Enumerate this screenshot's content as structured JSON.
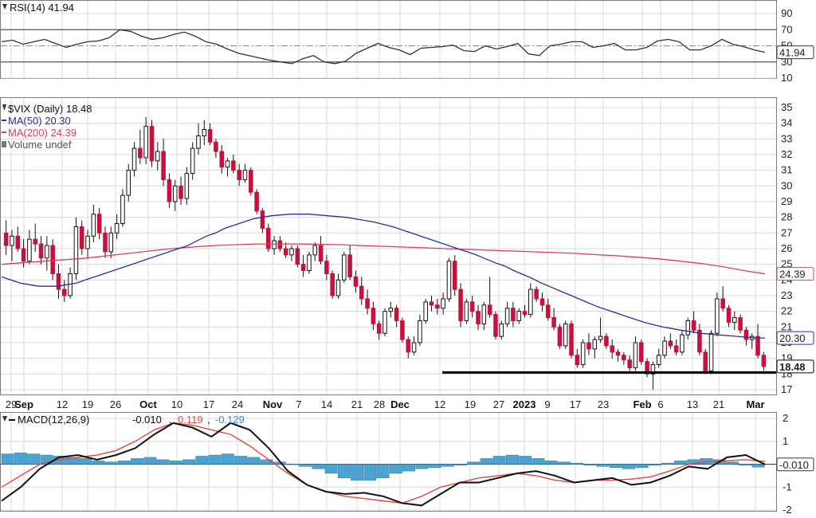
{
  "colors": {
    "up": "#ffffff",
    "down": "#c8103c",
    "wick": "#111111",
    "ma50": "#2a2f9a",
    "ma200": "#d8405a",
    "macd": "#111111",
    "signal": "#e24a3b",
    "hist": "#4aa3d0",
    "grid": "#d8d8d8",
    "support": "#000000"
  },
  "rsi_panel": {
    "legend": "RSI(14) 41.94",
    "value_label": "41.94",
    "ticks": [
      "90",
      "70",
      "50",
      "30",
      "10"
    ]
  },
  "price_panel": {
    "legend": {
      "title": "$VIX (Daily) 18.48",
      "ma50": "MA(50) 20.30",
      "ma200": "MA(200) 24.39",
      "volume": "Volume undef"
    },
    "last_label": "18.48",
    "ma50_label": "20.30",
    "ma200_label": "24.39",
    "ticks": [
      "35",
      "34",
      "33",
      "32",
      "31",
      "30",
      "29",
      "28",
      "27",
      "26",
      "25",
      "24",
      "23",
      "22",
      "21",
      "20",
      "19",
      "18",
      "17"
    ]
  },
  "x_axis": {
    "labels": [
      {
        "text": "29",
        "bold": false
      },
      {
        "text": "Sep",
        "bold": true
      },
      {
        "text": "12",
        "bold": false
      },
      {
        "text": "19",
        "bold": false
      },
      {
        "text": "26",
        "bold": false
      },
      {
        "text": "Oct",
        "bold": true
      },
      {
        "text": "10",
        "bold": false
      },
      {
        "text": "17",
        "bold": false
      },
      {
        "text": "24",
        "bold": false
      },
      {
        "text": "Nov",
        "bold": true
      },
      {
        "text": "7",
        "bold": false
      },
      {
        "text": "14",
        "bold": false
      },
      {
        "text": "21",
        "bold": false
      },
      {
        "text": "28",
        "bold": false
      },
      {
        "text": "Dec",
        "bold": true
      },
      {
        "text": "12",
        "bold": false
      },
      {
        "text": "19",
        "bold": false
      },
      {
        "text": "27",
        "bold": false
      },
      {
        "text": "2023",
        "bold": true
      },
      {
        "text": "9",
        "bold": false
      },
      {
        "text": "17",
        "bold": false
      },
      {
        "text": "23",
        "bold": false
      },
      {
        "text": "Feb",
        "bold": true
      },
      {
        "text": "6",
        "bold": false
      },
      {
        "text": "13",
        "bold": false
      },
      {
        "text": "21",
        "bold": false
      },
      {
        "text": "Mar",
        "bold": true
      }
    ]
  },
  "macd_panel": {
    "legend_prefix": "MACD(12,26,9)",
    "macd_value": "-0.010",
    "signal_value": "0.119",
    "hist_value": "-0.129",
    "value_label": "-0.010",
    "ticks": [
      "2",
      "1",
      "0",
      "-1",
      "-2"
    ]
  },
  "chart_data": {
    "type": "candlestick",
    "symbol": "$VIX",
    "interval": "Daily",
    "ylim": [
      17,
      35
    ],
    "support_level": 18.1,
    "last_close": 18.48,
    "ohlc": [
      [
        27.0,
        27.8,
        25.6,
        26.2
      ],
      [
        26.2,
        27.2,
        25.2,
        26.8
      ],
      [
        26.8,
        27.4,
        25.8,
        26.0
      ],
      [
        26.0,
        26.6,
        24.8,
        25.2
      ],
      [
        25.2,
        27.2,
        25.0,
        26.6
      ],
      [
        26.6,
        27.6,
        25.8,
        26.3
      ],
      [
        26.3,
        26.8,
        25.0,
        25.4
      ],
      [
        25.4,
        26.8,
        24.6,
        26.2
      ],
      [
        26.2,
        26.6,
        24.0,
        24.4
      ],
      [
        24.4,
        25.0,
        22.8,
        23.4
      ],
      [
        23.4,
        24.0,
        22.6,
        23.0
      ],
      [
        23.0,
        24.8,
        22.8,
        24.4
      ],
      [
        24.4,
        28.0,
        24.0,
        27.4
      ],
      [
        27.4,
        27.8,
        25.6,
        26.0
      ],
      [
        26.0,
        27.2,
        25.4,
        26.8
      ],
      [
        26.8,
        28.8,
        26.4,
        28.2
      ],
      [
        28.2,
        28.6,
        26.6,
        27.0
      ],
      [
        27.0,
        27.4,
        25.4,
        25.8
      ],
      [
        25.8,
        27.4,
        25.4,
        27.0
      ],
      [
        27.0,
        28.2,
        26.6,
        27.6
      ],
      [
        27.6,
        29.8,
        27.4,
        29.4
      ],
      [
        29.4,
        31.4,
        29.0,
        31.0
      ],
      [
        31.0,
        32.8,
        30.6,
        32.4
      ],
      [
        32.4,
        33.6,
        31.4,
        31.8
      ],
      [
        31.8,
        34.4,
        31.4,
        33.8
      ],
      [
        33.8,
        34.2,
        31.2,
        31.6
      ],
      [
        31.6,
        32.8,
        31.0,
        32.2
      ],
      [
        32.2,
        33.0,
        30.0,
        30.4
      ],
      [
        30.4,
        30.8,
        28.6,
        29.0
      ],
      [
        29.0,
        30.4,
        28.4,
        30.0
      ],
      [
        30.0,
        30.6,
        28.8,
        29.2
      ],
      [
        29.2,
        31.2,
        28.8,
        30.8
      ],
      [
        30.8,
        32.8,
        30.4,
        32.4
      ],
      [
        32.4,
        34.0,
        32.0,
        33.2
      ],
      [
        33.2,
        34.2,
        32.6,
        33.6
      ],
      [
        33.6,
        34.0,
        32.6,
        32.8
      ],
      [
        32.8,
        33.0,
        31.8,
        32.2
      ],
      [
        32.2,
        32.6,
        30.8,
        31.2
      ],
      [
        31.2,
        31.8,
        30.6,
        31.6
      ],
      [
        31.6,
        32.0,
        30.8,
        31.0
      ],
      [
        31.0,
        31.4,
        30.0,
        30.4
      ],
      [
        30.4,
        31.4,
        30.2,
        31.0
      ],
      [
        31.0,
        31.2,
        29.4,
        29.6
      ],
      [
        29.6,
        29.8,
        28.2,
        28.4
      ],
      [
        28.4,
        28.6,
        27.0,
        27.3
      ],
      [
        27.3,
        27.6,
        25.8,
        26.0
      ],
      [
        26.0,
        26.8,
        25.6,
        26.5
      ],
      [
        26.5,
        26.8,
        25.8,
        26.0
      ],
      [
        26.0,
        26.4,
        25.4,
        25.6
      ],
      [
        25.6,
        26.2,
        25.2,
        26.0
      ],
      [
        26.0,
        26.2,
        24.8,
        25.0
      ],
      [
        25.0,
        25.6,
        24.2,
        24.6
      ],
      [
        24.6,
        25.8,
        24.4,
        25.6
      ],
      [
        25.6,
        26.4,
        25.2,
        26.2
      ],
      [
        26.2,
        26.8,
        25.0,
        25.2
      ],
      [
        25.2,
        25.6,
        24.0,
        24.4
      ],
      [
        24.4,
        24.6,
        22.8,
        23.0
      ],
      [
        23.0,
        24.4,
        22.8,
        24.0
      ],
      [
        24.0,
        25.8,
        23.8,
        25.6
      ],
      [
        25.6,
        26.2,
        24.0,
        24.2
      ],
      [
        24.2,
        24.6,
        23.2,
        23.6
      ],
      [
        23.6,
        24.2,
        22.4,
        22.8
      ],
      [
        22.8,
        23.4,
        21.8,
        22.2
      ],
      [
        22.2,
        22.6,
        20.8,
        21.2
      ],
      [
        21.2,
        21.4,
        20.2,
        20.6
      ],
      [
        20.6,
        22.2,
        20.4,
        22.0
      ],
      [
        22.0,
        22.6,
        21.6,
        22.2
      ],
      [
        22.2,
        22.4,
        21.0,
        21.4
      ],
      [
        21.4,
        21.6,
        20.0,
        20.2
      ],
      [
        20.2,
        20.4,
        19.0,
        19.4
      ],
      [
        19.4,
        20.4,
        19.2,
        20.0
      ],
      [
        20.0,
        21.8,
        19.8,
        21.4
      ],
      [
        21.4,
        22.8,
        21.2,
        22.6
      ],
      [
        22.6,
        23.0,
        22.0,
        22.4
      ],
      [
        22.4,
        22.8,
        21.8,
        22.2
      ],
      [
        22.2,
        23.2,
        21.8,
        22.8
      ],
      [
        22.8,
        25.4,
        22.6,
        25.2
      ],
      [
        25.2,
        25.6,
        23.0,
        23.4
      ],
      [
        23.4,
        23.8,
        21.0,
        21.4
      ],
      [
        21.4,
        22.8,
        21.2,
        22.6
      ],
      [
        22.6,
        23.0,
        21.6,
        22.0
      ],
      [
        22.0,
        22.4,
        20.8,
        21.2
      ],
      [
        21.2,
        22.6,
        20.8,
        22.4
      ],
      [
        22.4,
        24.2,
        21.6,
        21.8
      ],
      [
        21.8,
        22.0,
        20.2,
        20.4
      ],
      [
        20.4,
        21.4,
        20.2,
        21.2
      ],
      [
        21.2,
        22.6,
        21.0,
        22.2
      ],
      [
        22.2,
        22.6,
        21.0,
        21.4
      ],
      [
        21.4,
        22.2,
        21.2,
        22.0
      ],
      [
        22.0,
        22.4,
        21.6,
        21.8
      ],
      [
        21.8,
        23.8,
        21.6,
        23.4
      ],
      [
        23.4,
        23.6,
        22.6,
        22.8
      ],
      [
        22.8,
        23.2,
        22.0,
        22.4
      ],
      [
        22.4,
        22.8,
        21.4,
        21.6
      ],
      [
        21.6,
        22.2,
        20.8,
        21.0
      ],
      [
        21.0,
        21.2,
        19.6,
        19.8
      ],
      [
        19.8,
        21.4,
        19.6,
        21.2
      ],
      [
        21.2,
        21.4,
        19.0,
        19.2
      ],
      [
        19.2,
        19.6,
        18.4,
        18.6
      ],
      [
        18.6,
        20.2,
        18.4,
        20.0
      ],
      [
        20.0,
        20.6,
        19.2,
        19.6
      ],
      [
        19.6,
        20.4,
        19.0,
        20.2
      ],
      [
        20.2,
        21.6,
        20.0,
        20.4
      ],
      [
        20.4,
        20.6,
        19.6,
        19.8
      ],
      [
        19.8,
        20.2,
        19.0,
        19.4
      ],
      [
        19.4,
        19.6,
        18.8,
        19.2
      ],
      [
        19.2,
        19.4,
        18.6,
        18.9
      ],
      [
        18.9,
        19.2,
        18.2,
        18.4
      ],
      [
        18.4,
        20.4,
        18.2,
        20.0
      ],
      [
        20.0,
        20.2,
        18.6,
        18.8
      ],
      [
        18.8,
        19.0,
        17.8,
        18.0
      ],
      [
        18.0,
        18.8,
        17.0,
        18.6
      ],
      [
        18.6,
        19.6,
        18.4,
        19.2
      ],
      [
        19.2,
        20.4,
        19.0,
        20.1
      ],
      [
        20.1,
        20.6,
        19.6,
        19.8
      ],
      [
        19.8,
        20.2,
        19.2,
        19.4
      ],
      [
        19.4,
        20.8,
        19.2,
        20.5
      ],
      [
        20.5,
        21.6,
        20.2,
        21.4
      ],
      [
        21.4,
        22.0,
        20.6,
        20.8
      ],
      [
        20.8,
        21.2,
        19.2,
        19.4
      ],
      [
        19.4,
        19.6,
        18.0,
        18.2
      ],
      [
        18.2,
        20.8,
        18.0,
        20.6
      ],
      [
        20.6,
        23.2,
        20.4,
        22.8
      ],
      [
        22.8,
        23.6,
        22.0,
        22.2
      ],
      [
        22.2,
        22.4,
        21.0,
        21.3
      ],
      [
        21.3,
        22.0,
        20.8,
        21.6
      ],
      [
        21.6,
        21.8,
        20.6,
        20.8
      ],
      [
        20.8,
        21.0,
        19.8,
        20.2
      ],
      [
        20.2,
        20.6,
        19.6,
        20.4
      ],
      [
        20.4,
        21.2,
        19.0,
        19.2
      ],
      [
        19.2,
        19.4,
        18.2,
        18.48
      ]
    ],
    "ma50": [
      24.2,
      24.0,
      23.8,
      23.7,
      23.6,
      23.6,
      23.6,
      23.7,
      23.8,
      24.0,
      24.2,
      24.4,
      24.6,
      24.8,
      25.0,
      25.2,
      25.4,
      25.6,
      25.8,
      26.0,
      26.2,
      26.5,
      26.8,
      27.0,
      27.3,
      27.5,
      27.7,
      27.9,
      28.0,
      28.1,
      28.15,
      28.2,
      28.2,
      28.2,
      28.15,
      28.1,
      28.05,
      28.0,
      27.9,
      27.8,
      27.7,
      27.55,
      27.4,
      27.2,
      27.0,
      26.8,
      26.6,
      26.4,
      26.2,
      26.0,
      25.8,
      25.6,
      25.35,
      25.1,
      24.9,
      24.6,
      24.35,
      24.1,
      23.8,
      23.55,
      23.3,
      23.05,
      22.8,
      22.55,
      22.3,
      22.1,
      21.9,
      21.7,
      21.5,
      21.3,
      21.15,
      21.0,
      20.9,
      20.8,
      20.7,
      20.6,
      20.55,
      20.5,
      20.45,
      20.4,
      20.35,
      20.3,
      20.3
    ],
    "ma200": [
      25.0,
      25.1,
      25.2,
      25.3,
      25.4,
      25.55,
      25.7,
      25.85,
      26.0,
      26.1,
      26.2,
      26.25,
      26.3,
      26.3,
      26.3,
      26.28,
      26.25,
      26.2,
      26.15,
      26.1,
      26.05,
      26.0,
      25.95,
      25.9,
      25.85,
      25.8,
      25.75,
      25.7,
      25.62,
      25.55,
      25.45,
      25.35,
      25.2,
      25.05,
      24.85,
      24.6,
      24.39
    ],
    "rsi": [
      55,
      57,
      52,
      55,
      58,
      53,
      48,
      52,
      55,
      56,
      60,
      70,
      68,
      62,
      58,
      60,
      64,
      67,
      62,
      55,
      52,
      46,
      41,
      38,
      35,
      32,
      30,
      28,
      34,
      38,
      30,
      28,
      31,
      41,
      47,
      53,
      48,
      45,
      39,
      47,
      48,
      49,
      51,
      44,
      43,
      50,
      46,
      49,
      53,
      40,
      38,
      50,
      52,
      55,
      55,
      48,
      50,
      53,
      45,
      45,
      48,
      56,
      58,
      55,
      45,
      45,
      50,
      58,
      52,
      49,
      45,
      42
    ],
    "macd": [
      -1.6,
      -1.0,
      -0.2,
      0.3,
      0.4,
      0.2,
      0.4,
      0.7,
      1.3,
      1.8,
      1.6,
      1.2,
      1.8,
      1.5,
      0.7,
      -0.3,
      -0.9,
      -1.2,
      -1.3,
      -1.25,
      -1.4,
      -1.7,
      -1.8,
      -1.3,
      -0.8,
      -0.8,
      -0.6,
      -0.4,
      -0.3,
      -0.5,
      -0.8,
      -0.7,
      -0.6,
      -0.9,
      -0.8,
      -0.5,
      -0.1,
      -0.2,
      0.3,
      0.4,
      -0.01
    ],
    "macd_signal": [
      -1.0,
      -0.5,
      0.0,
      0.2,
      0.3,
      0.4,
      0.6,
      1.0,
      1.5,
      1.8,
      1.7,
      1.5,
      1.3,
      0.8,
      0.2,
      -0.4,
      -0.9,
      -1.2,
      -1.4,
      -1.5,
      -1.6,
      -1.7,
      -1.4,
      -1.0,
      -0.8,
      -0.6,
      -0.5,
      -0.4,
      -0.5,
      -0.7,
      -0.8,
      -0.7,
      -0.7,
      -0.65,
      -0.55,
      -0.3,
      0.0,
      0.1,
      0.15,
      0.2,
      0.119
    ],
    "macd_hist": [
      0.45,
      0.5,
      0.45,
      0.4,
      0.35,
      0.3,
      0.25,
      0.15,
      0.1,
      0.15,
      0.25,
      0.3,
      0.2,
      0.15,
      0.2,
      0.35,
      0.4,
      0.45,
      0.35,
      0.3,
      0.2,
      0.1,
      0.0,
      -0.1,
      -0.2,
      -0.4,
      -0.6,
      -0.7,
      -0.7,
      -0.6,
      -0.4,
      -0.3,
      -0.2,
      -0.15,
      -0.1,
      -0.05,
      0.1,
      0.25,
      0.35,
      0.4,
      0.35,
      0.25,
      0.15,
      0.1,
      0.05,
      -0.05,
      -0.1,
      -0.15,
      -0.2,
      -0.15,
      -0.05,
      0.05,
      0.15,
      0.2,
      0.25,
      0.2,
      0.1,
      -0.05,
      -0.129
    ]
  }
}
